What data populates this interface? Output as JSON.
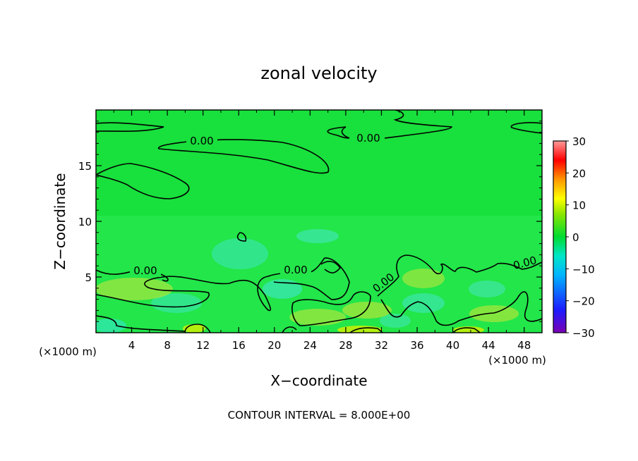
{
  "chart_data": {
    "type": "heatmap",
    "title": "zonal velocity",
    "xlabel": "X−coordinate",
    "ylabel": "Z−coordinate",
    "x_unit_left": "(×1000 m)",
    "x_unit_right": "(×1000 m)",
    "xlim": [
      0,
      50
    ],
    "ylim": [
      0,
      20
    ],
    "x_ticks": [
      4,
      8,
      12,
      16,
      20,
      24,
      28,
      32,
      36,
      40,
      44,
      48
    ],
    "x_tick_labels": [
      "4",
      "8",
      "12",
      "16",
      "20",
      "24",
      "28",
      "32",
      "36",
      "40",
      "44",
      "48"
    ],
    "y_ticks": [
      5,
      10,
      15
    ],
    "y_tick_labels": [
      "5",
      "10",
      "15"
    ],
    "contour_label": "0.00",
    "footer": "CONTOUR INTERVAL = 8.000E+00",
    "colorbar": {
      "min": -30,
      "max": 30,
      "ticks": [
        30,
        20,
        10,
        0,
        -10,
        -20,
        -30
      ],
      "tick_labels": [
        "30",
        "20",
        "10",
        "0",
        "−10",
        "−20",
        "−30"
      ]
    },
    "colors": {
      "background_field": "#22e64a",
      "upper_field": "#18e03c",
      "low_speed": "#37e6a0",
      "high_speed": "#9be640",
      "contour": "#000000"
    }
  }
}
